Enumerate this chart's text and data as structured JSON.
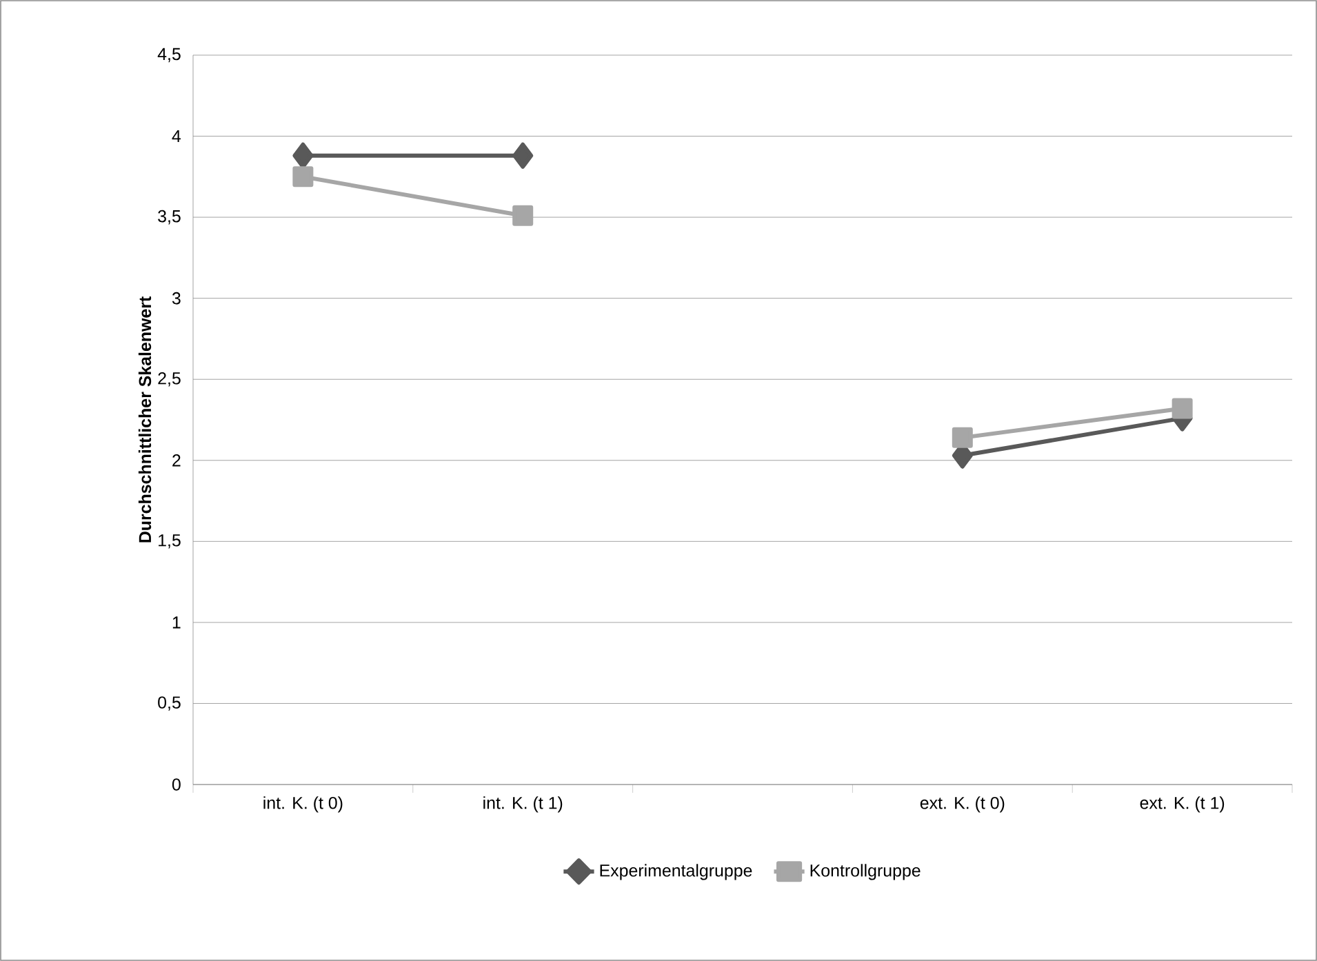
{
  "chart_data": {
    "type": "line",
    "ylabel": "Durchschnittlicher Skalenwert",
    "categories": [
      "int. K. (t 0)",
      "int. K. (t 1)",
      null,
      "ext. K. (t 0)",
      "ext. K. (t 1)"
    ],
    "series": [
      {
        "name": "Experimentalgruppe",
        "color": "#595959",
        "marker": "diamond",
        "values": [
          3.88,
          3.88,
          null,
          2.03,
          2.26
        ]
      },
      {
        "name": "Kontrollgruppe",
        "color": "#a6a6a6",
        "marker": "square",
        "values": [
          3.75,
          3.51,
          null,
          2.14,
          2.32
        ]
      }
    ],
    "ylim": [
      0,
      4.5
    ],
    "yticks": [
      {
        "value": 0,
        "label": "0"
      },
      {
        "value": 0.5,
        "label": "0,5"
      },
      {
        "value": 1,
        "label": "1"
      },
      {
        "value": 1.5,
        "label": "1,5"
      },
      {
        "value": 2,
        "label": "2"
      },
      {
        "value": 2.5,
        "label": "2,5"
      },
      {
        "value": 3,
        "label": "3"
      },
      {
        "value": 3.5,
        "label": "3,5"
      },
      {
        "value": 4,
        "label": "4"
      },
      {
        "value": 4.5,
        "label": "4,5"
      }
    ],
    "grid": "y",
    "legend": "bottom",
    "line_style": "solid"
  }
}
